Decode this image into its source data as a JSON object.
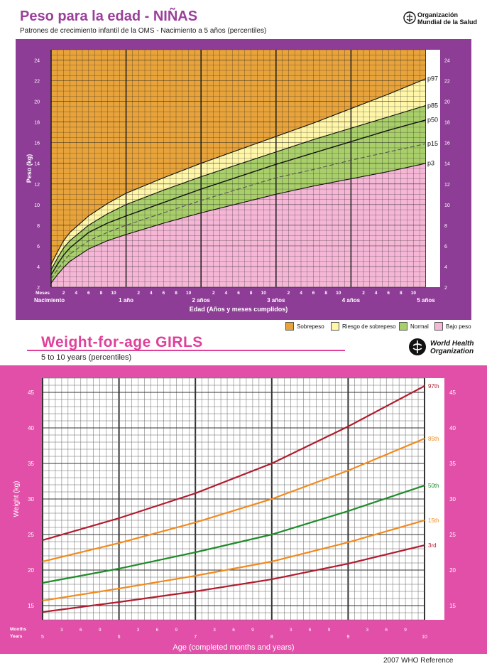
{
  "chart_data": [
    {
      "type": "line",
      "title": "Peso para la edad - NIÑAS",
      "subtitle": "Patrones de crecimiento infantil de la OMS - Nacimiento a 5 años (percentiles)",
      "xlabel": "Edad (Años y meses cumplidos)",
      "ylabel": "Peso (kg)",
      "xlim": [
        0,
        60
      ],
      "ylim": [
        2,
        25
      ],
      "yticks": [
        "2",
        "4",
        "6",
        "8",
        "10",
        "12",
        "14",
        "16",
        "18",
        "20",
        "22",
        "24"
      ],
      "month_label": "Meses",
      "month_ticks": [
        "2",
        "4",
        "6",
        "8",
        "10"
      ],
      "year_ticks": [
        "Nacimiento",
        "1 año",
        "2 años",
        "3 años",
        "4 años",
        "5 años"
      ],
      "zones": [
        {
          "name": "Sobrepeso",
          "color": "#e8a33a"
        },
        {
          "name": "Riesgo de sobrepeso",
          "color": "#fff6a8"
        },
        {
          "name": "Normal",
          "color": "#a9cf6a"
        },
        {
          "name": "Bajo peso",
          "color": "#f6b7d7"
        }
      ],
      "x": [
        0,
        1,
        2,
        3,
        6,
        9,
        12,
        18,
        24,
        30,
        36,
        42,
        48,
        54,
        60
      ],
      "series": [
        {
          "name": "p97",
          "values": [
            4.2,
            5.4,
            6.5,
            7.3,
            8.9,
            10.1,
            11.1,
            12.6,
            14.0,
            15.3,
            16.6,
            17.9,
            19.3,
            20.7,
            22.2
          ]
        },
        {
          "name": "p85",
          "values": [
            3.7,
            4.8,
            5.8,
            6.5,
            8.0,
            9.1,
            10.0,
            11.4,
            12.7,
            13.9,
            15.1,
            16.3,
            17.4,
            18.5,
            19.6
          ]
        },
        {
          "name": "p50",
          "values": [
            3.2,
            4.2,
            5.1,
            5.8,
            7.3,
            8.2,
            8.9,
            10.2,
            11.5,
            12.7,
            13.9,
            15.0,
            16.1,
            17.2,
            18.2
          ]
        },
        {
          "name": "p15",
          "values": [
            2.8,
            3.7,
            4.5,
            5.2,
            6.5,
            7.3,
            8.0,
            9.2,
            10.4,
            11.5,
            12.6,
            13.4,
            14.3,
            15.1,
            15.9
          ]
        },
        {
          "name": "p3",
          "values": [
            2.4,
            3.2,
            3.9,
            4.5,
            5.7,
            6.5,
            7.1,
            8.2,
            9.2,
            10.1,
            11.0,
            11.8,
            12.5,
            13.2,
            14.0
          ]
        }
      ]
    },
    {
      "type": "line",
      "title": "Weight-for-age  GIRLS",
      "subtitle": "5 to 10 years (percentiles)",
      "xlabel": "Age (completed months and years)",
      "ylabel": "Weight (kg)",
      "xlim": [
        5,
        10
      ],
      "ylim": [
        13,
        47
      ],
      "yticks": [
        "15",
        "20",
        "25",
        "30",
        "35",
        "40",
        "45"
      ],
      "row_labels": [
        "Months",
        "Years"
      ],
      "month_ticks": [
        "3",
        "6",
        "9"
      ],
      "year_ticks": [
        "5",
        "6",
        "7",
        "8",
        "9",
        "10"
      ],
      "x": [
        5,
        6,
        7,
        8,
        9,
        10
      ],
      "series": [
        {
          "name": "97th",
          "color": "#b01c2e",
          "values": [
            24.2,
            27.3,
            30.8,
            35.0,
            40.2,
            45.9
          ]
        },
        {
          "name": "85th",
          "color": "#f28a1c",
          "values": [
            21.2,
            23.8,
            26.7,
            30.0,
            34.0,
            38.5
          ]
        },
        {
          "name": "50th",
          "color": "#1f8c2a",
          "values": [
            18.2,
            20.2,
            22.5,
            25.0,
            28.3,
            31.9
          ]
        },
        {
          "name": "15th",
          "color": "#f28a1c",
          "values": [
            15.7,
            17.4,
            19.2,
            21.2,
            23.9,
            27.0
          ]
        },
        {
          "name": "3rd",
          "color": "#b01c2e",
          "values": [
            14.1,
            15.5,
            17.0,
            18.7,
            20.9,
            23.5
          ]
        }
      ]
    }
  ],
  "footer": {
    "reference": "2007 WHO Reference"
  },
  "logos": {
    "oms_1": "Organización",
    "oms_2": "Mundial de la Salud",
    "who_1": "World Health",
    "who_2": "Organization"
  },
  "colors": {
    "purple": "#8e3d96",
    "pink": "#e24fa8",
    "title_pink": "#e0409a"
  }
}
